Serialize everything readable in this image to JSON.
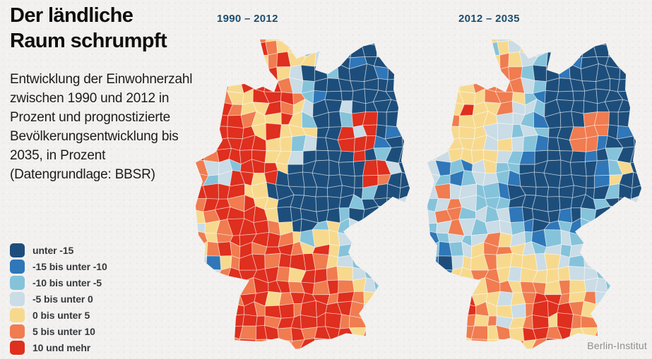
{
  "title": {
    "lines": [
      "Der ländliche",
      "Raum schrumpft"
    ]
  },
  "subtitle": {
    "lines": [
      "Entwicklung der Einwohnerzahl",
      "zwischen 1990 und 2012 in",
      "Prozent und prognostizierte",
      "Bevölkerungsentwicklung bis",
      "2035, in Prozent",
      "(Datengrundlage: BBSR)"
    ]
  },
  "source": "Berlin-Institut",
  "legend": {
    "items": [
      {
        "label": "unter -15",
        "color": "#1d4e7b"
      },
      {
        "label": "-15 bis unter -10",
        "color": "#2f77b8"
      },
      {
        "label": "-10 bis unter -5",
        "color": "#85c3da"
      },
      {
        "label": "-5 bis unter 0",
        "color": "#cadce6"
      },
      {
        "label": "0 bis unter 5",
        "color": "#f7d98e"
      },
      {
        "label": "5 bis unter 10",
        "color": "#f07c50"
      },
      {
        "label": "10 und mehr",
        "color": "#df2f1e"
      }
    ]
  },
  "maps": [
    {
      "label": "1990 – 2012",
      "grid": [
        "455565445400020000",
        "445646544201100300",
        "456664564430010000",
        "466546643002000100",
        "565466653200000000",
        "665446665210000000",
        "666544654300300000",
        "666654464200266000",
        "566664644400636010",
        "666666442300666100",
        "656666443000060200",
        "533266640000006630",
        "523664600000006500",
        "666644000000002000",
        "566564400000020003",
        "456666400000200230",
        "345666540024232000",
        "545666654244320000",
        "456565665464230000",
        "314566566654323000",
        "235666654665432200",
        "346656665656543200",
        "456566456665654200",
        "446665665666653000",
        "045666566666554000",
        "005656656566645000",
        "000565455654500000"
      ]
    },
    {
      "label": "2012 – 2035",
      "grid": [
        "444244342000010000",
        "443442434301000100",
        "444424543200100000",
        "444345552001000000",
        "444455553200000000",
        "444445542100000000",
        "444644533200000000",
        "445444332100055000",
        "344443323200555010",
        "334443432100551000",
        "434444321000010200",
        "312134220000001240",
        "321233210000001400",
        "353322100000000200",
        "235322200000002003",
        "355232310001020230",
        "235323321012122000",
        "123235432123220000",
        "212345543232320000",
        "103445444343232000",
        "014455434444332300",
        "234545545545433200",
        "345644345665453200",
        "346654435666544000",
        "034545345646554000",
        "004554546656445000",
        "000454454564400000"
      ]
    }
  ],
  "chart_data": {
    "type": "choropleth",
    "title": "Der ländliche Raum schrumpft",
    "unit": "Bevölkerungsentwicklung in Prozent",
    "periods": [
      "1990 – 2012",
      "2012 – 2035"
    ],
    "classes": [
      "unter -15",
      "-15 bis unter -10",
      "-10 bis unter -5",
      "-5 bis unter 0",
      "0 bis unter 5",
      "5 bis unter 10",
      "10 und mehr"
    ],
    "class_colors": [
      "#1d4e7b",
      "#2f77b8",
      "#85c3da",
      "#cadce6",
      "#f7d98e",
      "#f07c50",
      "#df2f1e"
    ],
    "legend_position": "bottom-left",
    "source": "Berlin-Institut"
  },
  "colors": {
    "background": "#f2f1ef",
    "title": "#0e0e0e",
    "subtitle": "#1c1c1c",
    "map_label": "#1d4d6e",
    "legend_label": "#35383c",
    "source": "#8d8d8d"
  }
}
